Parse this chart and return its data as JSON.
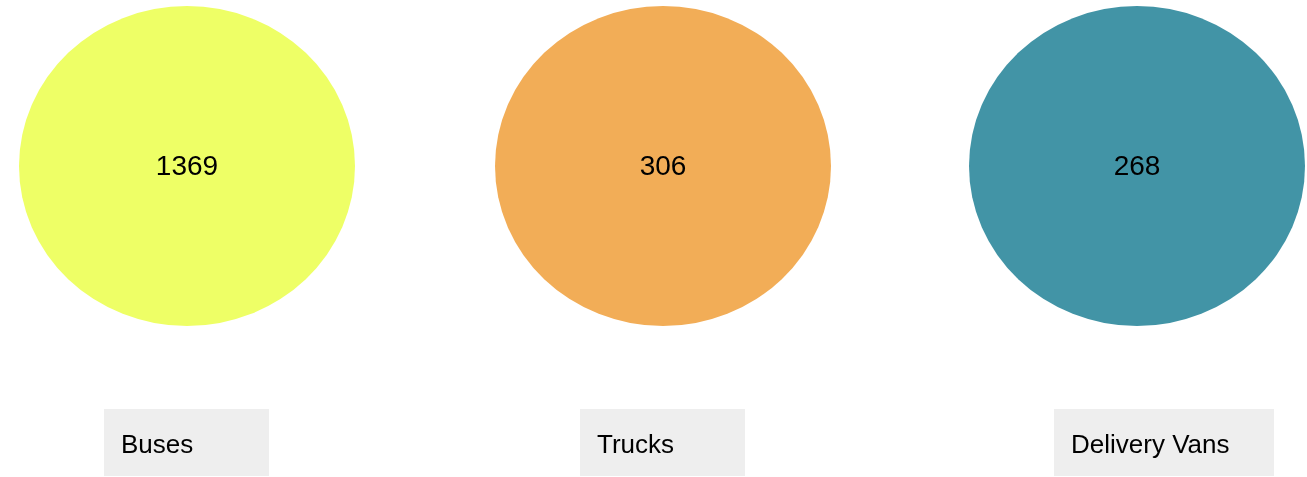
{
  "chart_data": {
    "type": "other",
    "categories": [
      "Buses",
      "Trucks",
      "Delivery Vans"
    ],
    "values": [
      1369,
      306,
      268
    ],
    "colors": [
      "#eeff66",
      "#f2ad57",
      "#4294a6"
    ],
    "data_labels": true
  }
}
